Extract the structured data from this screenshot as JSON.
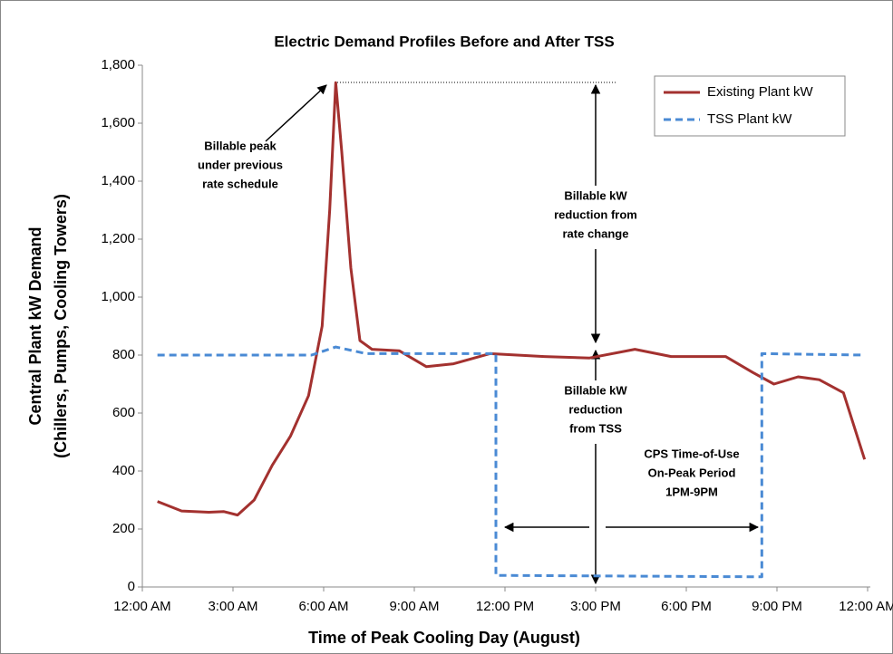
{
  "chart_data": {
    "type": "line",
    "title": "Electric Demand Profiles Before and After TSS",
    "x_label": "Time of Peak Cooling Day (August)",
    "y_label": [
      "Central Plant kW Demand",
      "(Chillers, Pumps, Cooling Towers)"
    ],
    "xlim": [
      0,
      24
    ],
    "ylim": [
      0,
      1800
    ],
    "xticks": [
      {
        "value": 0,
        "label": "12:00 AM"
      },
      {
        "value": 3,
        "label": "3:00 AM"
      },
      {
        "value": 6,
        "label": "6:00 AM"
      },
      {
        "value": 9,
        "label": "9:00 AM"
      },
      {
        "value": 12,
        "label": "12:00 PM"
      },
      {
        "value": 15,
        "label": "3:00 PM"
      },
      {
        "value": 18,
        "label": "6:00 PM"
      },
      {
        "value": 21,
        "label": "9:00 PM"
      },
      {
        "value": 24,
        "label": "12:00 AM"
      }
    ],
    "yticks": [
      0,
      200,
      400,
      600,
      800,
      {
        "value": 1000,
        "label": "1,000"
      },
      {
        "value": 1200,
        "label": "1,200"
      },
      {
        "value": 1400,
        "label": "1,400"
      },
      {
        "value": 1600,
        "label": "1,600"
      },
      {
        "value": 1800,
        "label": "1,800"
      }
    ],
    "legend": "top-right",
    "series": [
      {
        "name": "Existing Plant kW",
        "color": "#a3312f",
        "dash": false,
        "x": [
          0.5,
          1.3,
          2.2,
          2.7,
          3.15,
          3.7,
          4.3,
          4.9,
          5.5,
          5.95,
          6.2,
          6.4,
          6.6,
          6.9,
          7.2,
          7.6,
          8.5,
          9.4,
          10.3,
          11.5,
          13.3,
          14.8,
          16.3,
          17.5,
          19.3,
          20.2,
          20.9,
          21.7,
          22.4,
          23.2,
          23.9
        ],
        "values": [
          295,
          262,
          258,
          260,
          248,
          300,
          420,
          520,
          660,
          900,
          1300,
          1740,
          1500,
          1100,
          850,
          820,
          815,
          760,
          770,
          805,
          795,
          790,
          820,
          795,
          795,
          740,
          700,
          725,
          715,
          670,
          440
        ]
      },
      {
        "name": "TSS Plant kW",
        "color": "#4a8ad4",
        "dash": true,
        "x": [
          0.5,
          5.6,
          6.4,
          7.4,
          11.7,
          11.7,
          20.5,
          20.5,
          23.9
        ],
        "values": [
          800,
          800,
          828,
          805,
          805,
          40,
          35,
          805,
          800
        ]
      }
    ],
    "annotations": [
      [
        "Billable peak",
        "under previous",
        "rate schedule"
      ],
      [
        "Billable kW",
        "reduction from",
        "rate change"
      ],
      [
        "Billable kW",
        "reduction",
        "from TSS"
      ],
      [
        "CPS Time-of-Use",
        "On-Peak Period",
        "1PM-9PM"
      ]
    ]
  }
}
